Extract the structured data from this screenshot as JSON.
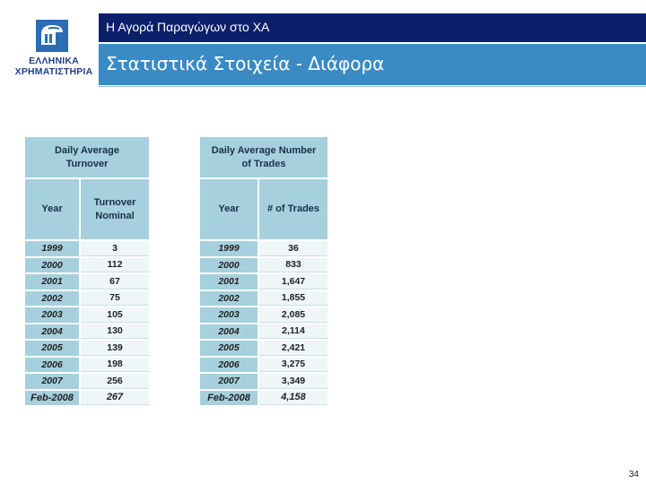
{
  "logo": {
    "line1": "ΕΛΛΗΝΙΚΑ",
    "line2": "ΧΡΗΜΑΤΙΣΤΗΡΙΑ",
    "icon": "athena-helmet-icon"
  },
  "header": {
    "title": "Η Αγορά Παραγώγων στο ΧΑ"
  },
  "section": {
    "title": "Στατιστικά Στοιχεία - Διάφορα"
  },
  "turnover_table": {
    "title_line1": "Daily Average",
    "title_line2": "Turnover",
    "col_year": "Year",
    "col_value_line1": "Turnover",
    "col_value_line2": "Nominal",
    "rows": [
      {
        "year": "1999",
        "value": "3"
      },
      {
        "year": "2000",
        "value": "112"
      },
      {
        "year": "2001",
        "value": "67"
      },
      {
        "year": "2002",
        "value": "75"
      },
      {
        "year": "2003",
        "value": "105"
      },
      {
        "year": "2004",
        "value": "130"
      },
      {
        "year": "2005",
        "value": "139"
      },
      {
        "year": "2006",
        "value": "198"
      },
      {
        "year": "2007",
        "value": "256"
      },
      {
        "year": "Feb-2008",
        "value": "267"
      }
    ]
  },
  "trades_table": {
    "title_line1": "Daily Average Number",
    "title_line2": "of Trades",
    "col_year": "Year",
    "col_value": "# of Trades",
    "rows": [
      {
        "year": "1999",
        "value": "36"
      },
      {
        "year": "2000",
        "value": "833"
      },
      {
        "year": "2001",
        "value": "1,647"
      },
      {
        "year": "2002",
        "value": "1,855"
      },
      {
        "year": "2003",
        "value": "2,085"
      },
      {
        "year": "2004",
        "value": "2,114"
      },
      {
        "year": "2005",
        "value": "2,421"
      },
      {
        "year": "2006",
        "value": "3,275"
      },
      {
        "year": "2007",
        "value": "3,349"
      },
      {
        "year": "Feb-2008",
        "value": "4,158"
      }
    ]
  },
  "page_number": "34",
  "colors": {
    "header_bg": "#0b1f6b",
    "subheader_bg": "#3a8bc4",
    "table_header": "#a6d0dd"
  }
}
